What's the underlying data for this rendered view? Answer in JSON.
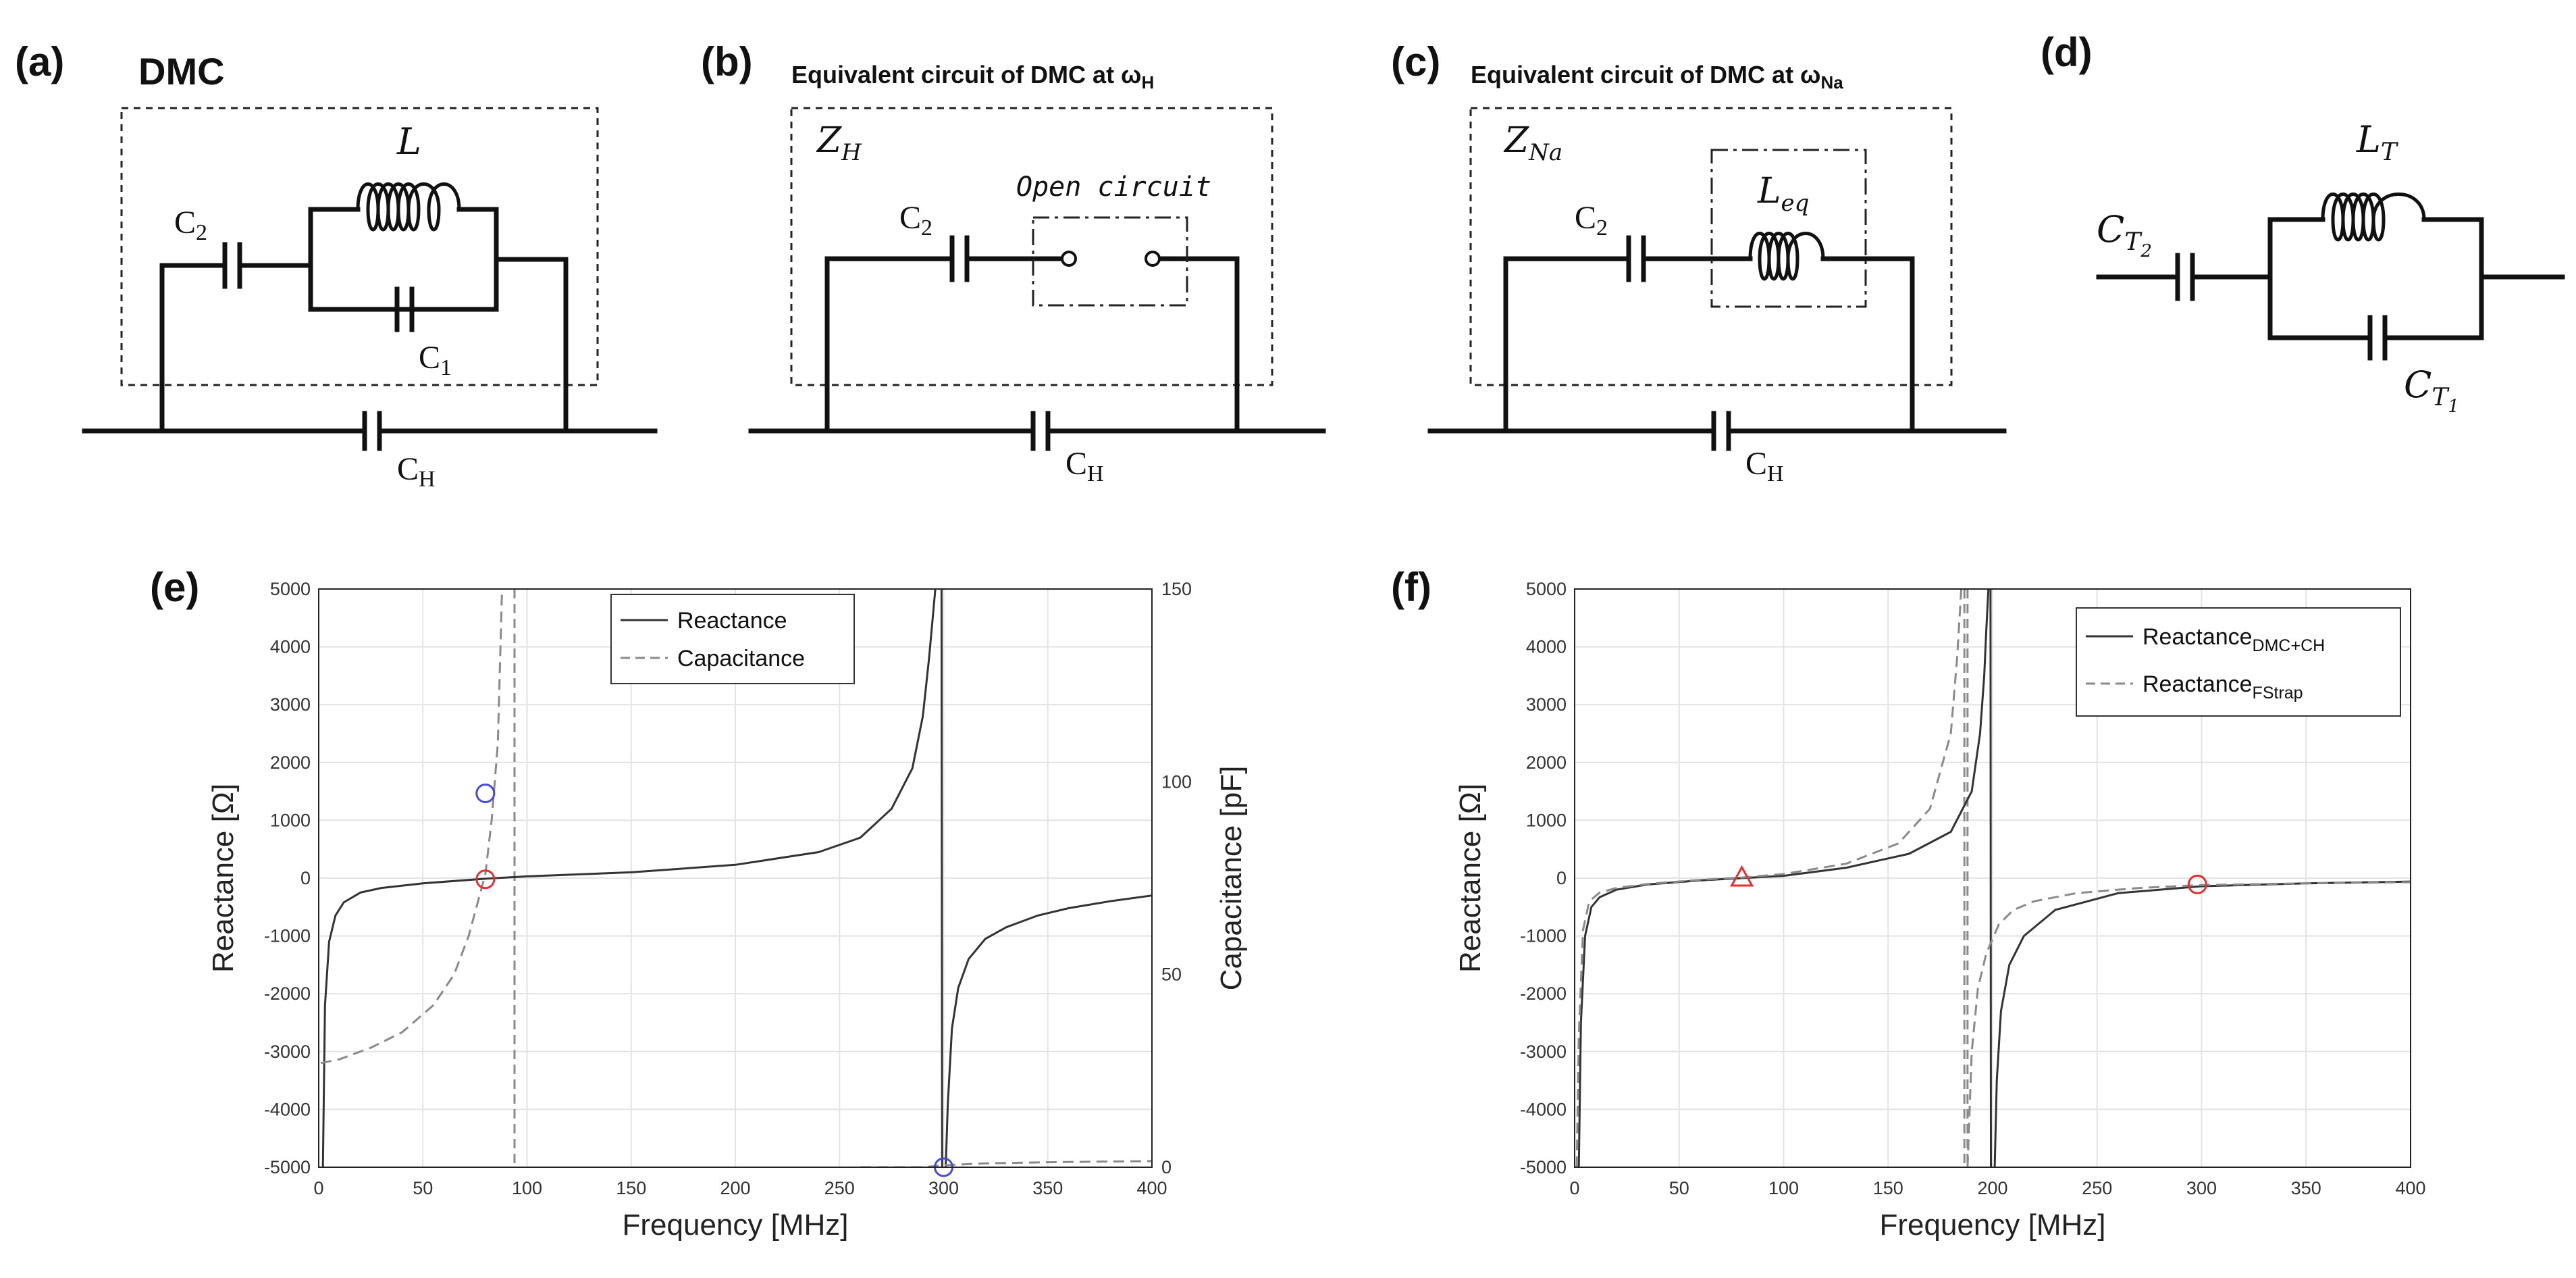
{
  "panel_labels": {
    "a": "(a)",
    "b": "(b)",
    "c": "(c)",
    "d": "(d)",
    "e": "(e)",
    "f": "(f)"
  },
  "circuit_a": {
    "title": "DMC",
    "L": "L",
    "C1": "C",
    "C1_sub": "1",
    "C2": "C",
    "C2_sub": "2",
    "CH": "C",
    "CH_sub": "H"
  },
  "circuit_b": {
    "title_main": "Equivalent circuit of DMC at ω",
    "title_sub": "H",
    "Z": "Z",
    "Z_sub": "H",
    "open_label": "Open circuit",
    "C2": "C",
    "C2_sub": "2",
    "CH": "C",
    "CH_sub": "H"
  },
  "circuit_c": {
    "title_main": "Equivalent circuit of DMC at ω",
    "title_sub": "Na",
    "Z": "Z",
    "Z_sub": "Na",
    "Leq": "L",
    "Leq_sub": "eq",
    "C2": "C",
    "C2_sub": "2",
    "CH": "C",
    "CH_sub": "H"
  },
  "circuit_d": {
    "LT": "L",
    "LT_sub": "T",
    "CT1": "C",
    "CT1_sub": "T",
    "CT1_subsub": "1",
    "CT2": "C",
    "CT2_sub": "T",
    "CT2_subsub": "2"
  },
  "colors": {
    "line": "#333333",
    "dashed": "#8a8a8a",
    "marker_red": "#e03030",
    "marker_blue": "#4a4ad8"
  },
  "chart_data": [
    {
      "type": "line",
      "id": "e",
      "xlabel": "Frequency [MHz]",
      "ylabel": "Reactance [Ω]",
      "y2label": "Capacitance [pF]",
      "xlim": [
        0,
        400
      ],
      "ylim": [
        -5000,
        5000
      ],
      "y2lim": [
        0,
        150
      ],
      "x_ticks": [
        "0",
        "50",
        "100",
        "150",
        "200",
        "250",
        "300",
        "350",
        "400"
      ],
      "y_ticks": [
        "5000",
        "4000",
        "3000",
        "2000",
        "1000",
        "0",
        "-1000",
        "-2000",
        "-3000",
        "-4000",
        "-5000"
      ],
      "y2_ticks": [
        "150",
        "100",
        "50",
        "0"
      ],
      "legend": [
        "Reactance",
        "Capacitance"
      ],
      "series": [
        {
          "name": "Reactance",
          "axis": "left",
          "style": "solid",
          "x": [
            2,
            3,
            5,
            8,
            12,
            20,
            30,
            50,
            80,
            100,
            150,
            200,
            240,
            260,
            275,
            285,
            290,
            293,
            295,
            296
          ],
          "values": [
            -5000,
            -2200,
            -1100,
            -650,
            -420,
            -250,
            -170,
            -90,
            -10,
            30,
            100,
            230,
            450,
            700,
            1200,
            1900,
            2800,
            3800,
            4600,
            5000
          ]
        },
        {
          "name": "Reactance",
          "axis": "left",
          "style": "solid",
          "segment": "upper",
          "x": [
            299,
            299.3
          ],
          "values": [
            5000,
            -5000
          ]
        },
        {
          "name": "Reactance",
          "axis": "left",
          "style": "solid",
          "x": [
            301,
            302,
            304,
            307,
            312,
            320,
            330,
            345,
            360,
            380,
            400
          ],
          "values": [
            -5000,
            -3900,
            -2600,
            -1900,
            -1400,
            -1050,
            -850,
            -650,
            -520,
            -400,
            -300
          ]
        },
        {
          "name": "Capacitance",
          "axis": "right",
          "style": "dashed",
          "x": [
            1,
            10,
            25,
            40,
            55,
            65,
            72,
            77,
            80,
            83,
            86,
            88
          ],
          "values": [
            27,
            28,
            31,
            35,
            42,
            50,
            60,
            70,
            76,
            90,
            110,
            150
          ]
        },
        {
          "name": "Capacitance",
          "axis": "right",
          "style": "dashed",
          "x": [
            260,
            290,
            300,
            320,
            350,
            400
          ],
          "values": [
            0,
            0,
            0.5,
            1,
            1.3,
            1.6
          ]
        }
      ],
      "asymptotes_x": [
        94
      ],
      "markers": [
        {
          "x": 80,
          "y": -20,
          "axis": "left",
          "shape": "circle",
          "color": "red"
        },
        {
          "x": 80,
          "y": 97,
          "axis": "right",
          "shape": "circle",
          "color": "blue"
        },
        {
          "x": 300,
          "y": 0,
          "axis": "right",
          "shape": "circle",
          "color": "blue"
        }
      ]
    },
    {
      "type": "line",
      "id": "f",
      "xlabel": "Frequency [MHz]",
      "ylabel": "Reactance [Ω]",
      "xlim": [
        0,
        400
      ],
      "ylim": [
        -5000,
        5000
      ],
      "x_ticks": [
        "0",
        "50",
        "100",
        "150",
        "200",
        "250",
        "300",
        "350",
        "400"
      ],
      "y_ticks": [
        "5000",
        "4000",
        "3000",
        "2000",
        "1000",
        "0",
        "-1000",
        "-2000",
        "-3000",
        "-4000",
        "-5000"
      ],
      "legend": [
        {
          "label": "Reactance",
          "sub": "DMC+CH",
          "style": "solid"
        },
        {
          "label": "Reactance",
          "sub": "FStrap",
          "style": "dashed"
        }
      ],
      "series": [
        {
          "name": "Reactance_DMC+CH",
          "style": "solid",
          "x": [
            2,
            3,
            5,
            8,
            12,
            20,
            35,
            60,
            80,
            100,
            130,
            160,
            180,
            190,
            194,
            196,
            197,
            198
          ],
          "values": [
            -5000,
            -2500,
            -1000,
            -500,
            -330,
            -200,
            -110,
            -40,
            0,
            40,
            180,
            420,
            800,
            1500,
            2500,
            3500,
            4300,
            5000
          ]
        },
        {
          "name": "Reactance_DMC+CH",
          "style": "solid",
          "segment": "upper",
          "x": [
            199,
            199.2
          ],
          "values": [
            5000,
            -5000
          ]
        },
        {
          "name": "Reactance_DMC+CH",
          "style": "solid",
          "x": [
            201,
            202,
            204,
            208,
            215,
            230,
            260,
            300,
            350,
            400
          ],
          "values": [
            -5000,
            -3500,
            -2300,
            -1500,
            -1000,
            -550,
            -260,
            -140,
            -90,
            -60
          ]
        },
        {
          "name": "Reactance_FStrap",
          "style": "dashed",
          "x": [
            1,
            2,
            4,
            7,
            12,
            20,
            35,
            60,
            80,
            100,
            130,
            155,
            170,
            180,
            183,
            185
          ],
          "values": [
            -5000,
            -2700,
            -900,
            -400,
            -250,
            -170,
            -100,
            -30,
            10,
            70,
            250,
            600,
            1200,
            2500,
            3800,
            5000
          ]
        },
        {
          "name": "Reactance_FStrap",
          "style": "dashed",
          "x": [
            188,
            190,
            193,
            197,
            203,
            210,
            220,
            240,
            270,
            300,
            350,
            400
          ],
          "values": [
            -5000,
            -3000,
            -1900,
            -1300,
            -800,
            -550,
            -400,
            -260,
            -170,
            -120,
            -90,
            -70
          ]
        }
      ],
      "asymptotes_x": [
        186.5,
        188
      ],
      "markers": [
        {
          "x": 80,
          "y": 0,
          "shape": "triangle",
          "color": "red"
        },
        {
          "x": 298,
          "y": -110,
          "shape": "circle",
          "color": "red"
        }
      ]
    }
  ]
}
